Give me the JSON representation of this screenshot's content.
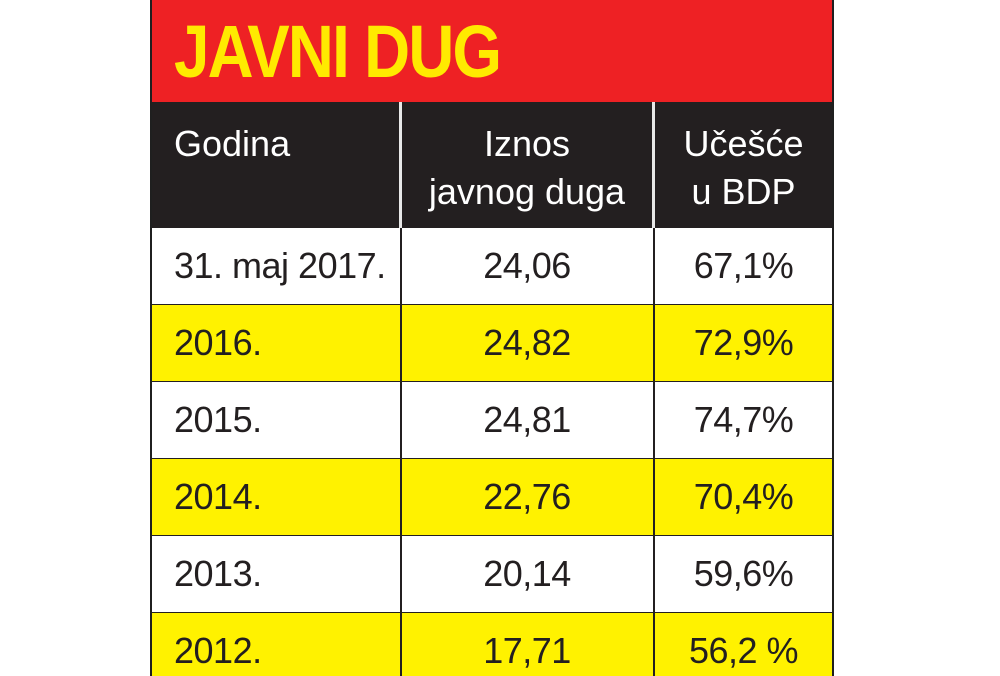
{
  "title": "JAVNI DUG",
  "chart_data": {
    "type": "table",
    "title": "JAVNI DUG",
    "columns": [
      {
        "lines": [
          "Godina"
        ]
      },
      {
        "lines": [
          "Iznos",
          "javnog duga"
        ]
      },
      {
        "lines": [
          "Učešće",
          "u BDP"
        ]
      }
    ],
    "rows": [
      {
        "godina": "31. maj 2017.",
        "iznos": "24,06",
        "ucesce": "67,1%"
      },
      {
        "godina": "2016.",
        "iznos": "24,82",
        "ucesce": "72,9%"
      },
      {
        "godina": "2015.",
        "iznos": "24,81",
        "ucesce": "74,7%"
      },
      {
        "godina": "2014.",
        "iznos": "22,76",
        "ucesce": "70,4%"
      },
      {
        "godina": "2013.",
        "iznos": "20,14",
        "ucesce": "59,6%"
      },
      {
        "godina": "2012.",
        "iznos": "17,71",
        "ucesce": "56,2 %"
      }
    ]
  },
  "colors": {
    "title_background": "#ee2124",
    "title_text": "#ffea00",
    "header_background": "#231f20",
    "header_text": "#ffffff",
    "row_alternate": "#fff200",
    "row_default": "#ffffff"
  }
}
